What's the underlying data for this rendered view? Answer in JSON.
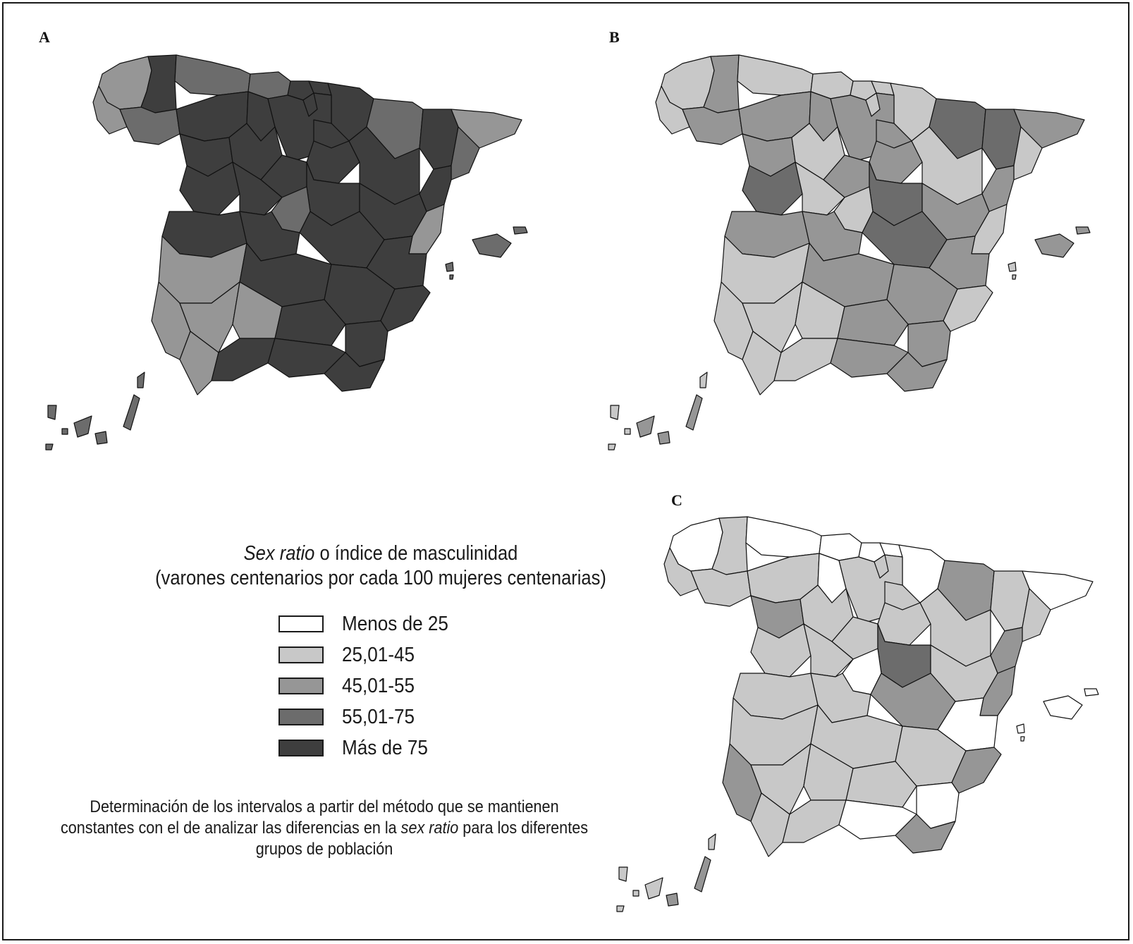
{
  "panels": [
    {
      "letter": "A"
    },
    {
      "letter": "B"
    },
    {
      "letter": "C"
    }
  ],
  "legend": {
    "title_italic": "Sex ratio",
    "title_rest": " o índice de masculinidad",
    "subtitle": "(varones centenarios por cada 100 mujeres centenarias)",
    "items": [
      {
        "label": "Menos de 25",
        "color": "#ffffff"
      },
      {
        "label": "25,01-45",
        "color": "#c8c8c8"
      },
      {
        "label": "45,01-55",
        "color": "#969696"
      },
      {
        "label": "55,01-75",
        "color": "#6c6c6c"
      },
      {
        "label": "Más de 75",
        "color": "#3e3e3e"
      }
    ]
  },
  "note": {
    "line1": "Determinación de los intervalos a partir del método que se mantienen",
    "line2_a": "constantes con el de analizar las diferencias en la ",
    "line2_italic": "sex ratio",
    "line2_b": " para los diferentes",
    "line3": "grupos de población"
  }
}
